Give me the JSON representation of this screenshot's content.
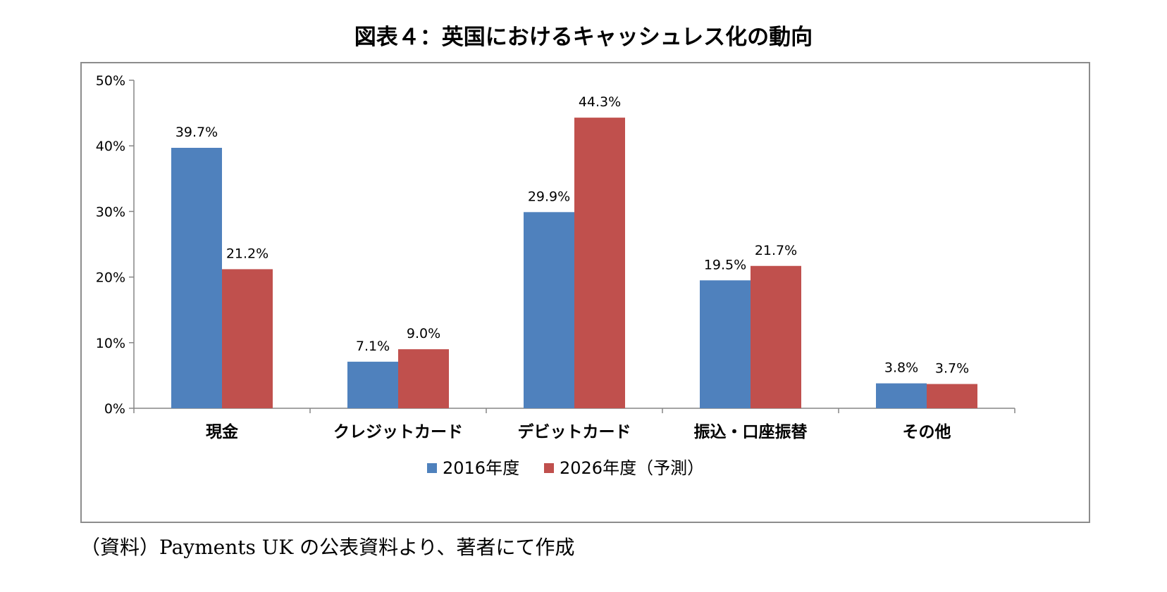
{
  "title": "図表４：英国におけるキャッシュレス化の動向",
  "source_note": "（資料）Payments UK の公表資料より、著者にて作成",
  "chart_data": {
    "type": "bar",
    "categories": [
      "現金",
      "クレジットカード",
      "デビットカード",
      "振込・口座振替",
      "その他"
    ],
    "series": [
      {
        "name": "2016年度",
        "color": "#4f81bd",
        "values": [
          39.7,
          7.1,
          29.9,
          19.5,
          3.8
        ],
        "labels": [
          "39.7%",
          "7.1%",
          "29.9%",
          "19.5%",
          "3.8%"
        ]
      },
      {
        "name": "2026年度（予測）",
        "color": "#c0504d",
        "values": [
          21.2,
          9.0,
          44.3,
          21.7,
          3.7
        ],
        "labels": [
          "21.2%",
          "9.0%",
          "44.3%",
          "21.7%",
          "3.7%"
        ]
      }
    ],
    "y_ticks": [
      "0%",
      "10%",
      "20%",
      "30%",
      "40%",
      "50%"
    ],
    "ylim": [
      0,
      50
    ],
    "grid": false,
    "legend_position": "bottom"
  }
}
